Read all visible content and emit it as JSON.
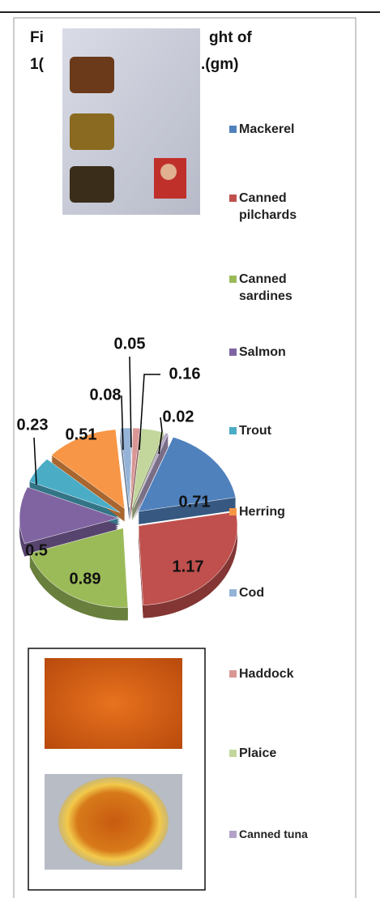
{
  "chart_data": {
    "type": "pie",
    "title_parts": [
      "Fi",
      "ght of",
      "1(",
      ".(gm)"
    ],
    "categories": [
      "Mackerel",
      "Canned pilchards",
      "Canned sardines",
      "Salmon",
      "Trout",
      "Herring",
      "Cod",
      "Haddock",
      "Plaice",
      "Canned tuna"
    ],
    "values": [
      0.71,
      1.17,
      0.89,
      0.5,
      0.23,
      0.51,
      0.08,
      0.05,
      0.16,
      0.02
    ],
    "colors": [
      "#4f81bd",
      "#c0504d",
      "#9bbb59",
      "#8064a2",
      "#4bacc6",
      "#f79646",
      "#95b3d7",
      "#d99694",
      "#c3d69b",
      "#b3a2c7"
    ],
    "legend": "right"
  }
}
